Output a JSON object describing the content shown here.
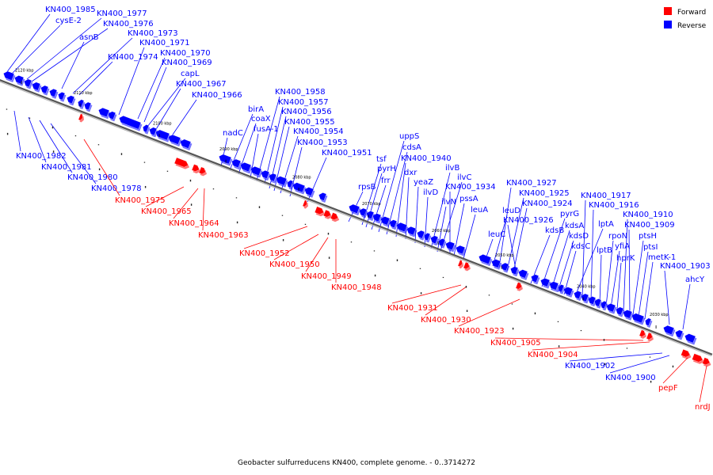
{
  "caption": "Geobacter sulfurreducens KN400, complete genome. - 0..3714272",
  "legend": [
    {
      "label": "Forward",
      "color": "#ff0000"
    },
    {
      "label": "Reverse",
      "color": "#0000ff"
    }
  ],
  "colors": {
    "forward": "#ff0000",
    "reverse": "#0000ff",
    "axis": "#666666"
  },
  "ticks": [
    "2120 kbp",
    "2110 kbp",
    "2100 kbp",
    "2090 kbp",
    "2080 kbp",
    "2070 kbp",
    "2060 kbp",
    "2050 kbp",
    "2040 kbp",
    "2030 kbp"
  ],
  "reverse_labels": [
    "KN400_1985",
    "cysE-2",
    "KN400_1977",
    "asnB",
    "KN400_1976",
    "KN400_1973",
    "KN400_1974",
    "KN400_1971",
    "KN400_1970",
    "KN400_1969",
    "capL",
    "KN400_1967",
    "KN400_1966",
    "nadC",
    "birA",
    "coaX",
    "fusA-1",
    "KN400_1958",
    "KN400_1957",
    "KN400_1956",
    "KN400_1955",
    "KN400_1954",
    "KN400_1953",
    "KN400_1951",
    "rpsB",
    "tsf",
    "pyrH",
    "frr",
    "uppS",
    "cdsA",
    "KN400_1940",
    "dxr",
    "yeaZ",
    "ilvD",
    "ilvB",
    "ilvC",
    "ilvN",
    "KN400_1934",
    "pssA",
    "leuA",
    "leuC",
    "leuD",
    "KN400_1927",
    "KN400_1925",
    "KN400_1924",
    "KN400_1926",
    "kdsB",
    "pyrG",
    "kdsA",
    "kdsD",
    "kdsC",
    "lptA",
    "KN400_1917",
    "KN400_1916",
    "lptB",
    "rpoN",
    "yfiA",
    "hprK",
    "KN400_1910",
    "KN400_1909",
    "ptsH",
    "ptsI",
    "metK-1",
    "KN400_1903",
    "ahcY",
    "KN400_1982",
    "KN400_1981",
    "KN400_1980",
    "KN400_1978",
    "KN400_1902",
    "KN400_1900"
  ],
  "forward_labels": [
    "KN400_1975",
    "KN400_1965",
    "KN400_1964",
    "KN400_1963",
    "KN400_1952",
    "KN400_1950",
    "KN400_1949",
    "KN400_1948",
    "KN400_1931",
    "KN400_1930",
    "KN400_1923",
    "KN400_1905",
    "KN400_1904",
    "pepF",
    "nrdJ"
  ]
}
